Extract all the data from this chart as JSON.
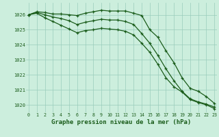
{
  "background_color": "#cceedd",
  "plot_bg_color": "#cceedd",
  "grid_color": "#99ccbb",
  "line_color": "#1a5c1a",
  "xlabel": "Graphe pression niveau de la mer (hPa)",
  "hours": [
    0,
    1,
    2,
    3,
    4,
    5,
    6,
    7,
    8,
    9,
    10,
    11,
    12,
    13,
    14,
    15,
    16,
    17,
    18,
    19,
    20,
    21,
    22,
    23
  ],
  "line1_top": [
    1026.0,
    1026.2,
    1026.15,
    1026.05,
    1026.05,
    1026.0,
    1025.95,
    1026.1,
    1026.2,
    1026.3,
    1026.25,
    1026.25,
    1026.25,
    1026.1,
    1025.95,
    1025.0,
    1024.5,
    1023.6,
    1022.8,
    1021.8,
    1021.1,
    1020.9,
    1020.55,
    1020.1
  ],
  "line2_mid": [
    1026.0,
    1026.15,
    1026.0,
    1025.85,
    1025.75,
    1025.6,
    1025.35,
    1025.5,
    1025.6,
    1025.7,
    1025.65,
    1025.65,
    1025.55,
    1025.35,
    1024.75,
    1024.1,
    1023.3,
    1022.4,
    1021.6,
    1020.9,
    1020.4,
    1020.2,
    1020.05,
    1019.85
  ],
  "line3_bot": [
    1026.0,
    1026.1,
    1025.8,
    1025.55,
    1025.3,
    1025.05,
    1024.8,
    1024.95,
    1025.0,
    1025.1,
    1025.05,
    1025.0,
    1024.9,
    1024.65,
    1024.1,
    1023.5,
    1022.7,
    1021.8,
    1021.2,
    1020.85,
    1020.35,
    1020.15,
    1020.0,
    1019.75
  ],
  "ylim_min": 1019.5,
  "ylim_max": 1026.8,
  "yticks": [
    1020,
    1021,
    1022,
    1023,
    1024,
    1025,
    1026
  ],
  "ylabel_fontsize": 5.0,
  "xlabel_fontsize": 6.5,
  "tick_fontsize": 4.8,
  "linewidth": 0.9,
  "markersize": 3.5
}
